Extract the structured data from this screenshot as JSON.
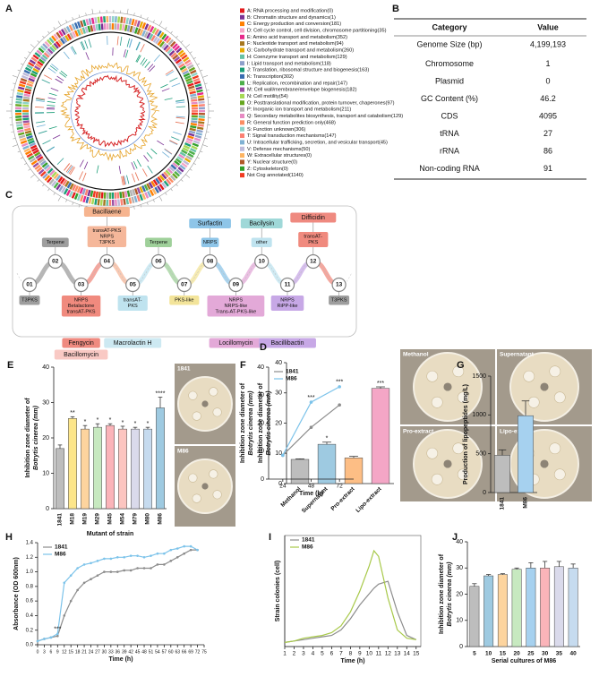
{
  "genome_map": {
    "panel": "A",
    "legend": [
      {
        "text": "A: RNA processing and modification(0)",
        "color": "#e41a1c"
      },
      {
        "text": "B: Chromatin structure and dynamics(1)",
        "color": "#7b3294"
      },
      {
        "text": "C: Energy production and conversion(181)",
        "color": "#ff7f00"
      },
      {
        "text": "D: Cell cycle control, cell division, chromosome partitioning(35)",
        "color": "#f4a6c6"
      },
      {
        "text": "E: Amino acid transport and metabolism(352)",
        "color": "#e7298a"
      },
      {
        "text": "F: Nucleotide transport and metabolism(94)",
        "color": "#a6761d"
      },
      {
        "text": "G: Carbohydrate transport and metabolism(260)",
        "color": "#e6ab02"
      },
      {
        "text": "H: Coenzyme transport and metabolism(129)",
        "color": "#66c2a5"
      },
      {
        "text": "I: Lipid transport and metabolism(118)",
        "color": "#8da0cb"
      },
      {
        "text": "J: Translation, ribosomal structure and biogenesis(163)",
        "color": "#1b9e77"
      },
      {
        "text": "K: Transcription(302)",
        "color": "#386cb0"
      },
      {
        "text": "L: Replication, recombination and repair(147)",
        "color": "#4daf4a"
      },
      {
        "text": "M: Cell wall/membrane/envelope biogenesis(182)",
        "color": "#984ea3"
      },
      {
        "text": "N: Cell motility(54)",
        "color": "#a6d854"
      },
      {
        "text": "O: Posttranslational modification, protein turnover, chaperones(97)",
        "color": "#66a61e"
      },
      {
        "text": "P: Inorganic ion transport and metabolism(211)",
        "color": "#b3b3b3"
      },
      {
        "text": "Q: Secondary metabolites biosynthesis, transport and catabolism(129)",
        "color": "#e78ac3"
      },
      {
        "text": "R: General function prediction only(468)",
        "color": "#fc8d62"
      },
      {
        "text": "S: Function unknown(306)",
        "color": "#8dd3c7"
      },
      {
        "text": "T: Signal transduction mechanisms(147)",
        "color": "#fb8072"
      },
      {
        "text": "U: Intracellular trafficking, secretion, and vesicular transport(45)",
        "color": "#80b1d3"
      },
      {
        "text": "V: Defense mechanisms(50)",
        "color": "#bebada"
      },
      {
        "text": "W: Extracellular structures(0)",
        "color": "#fdb462"
      },
      {
        "text": "Y: Nuclear structure(0)",
        "color": "#b15928"
      },
      {
        "text": "Z: Cytoskeleton(0)",
        "color": "#33a02c"
      },
      {
        "text": "Not Cog annotated(1140)",
        "color": "#f03b20"
      }
    ]
  },
  "genome_table": {
    "panel": "B",
    "header": [
      "Category",
      "Value"
    ],
    "rows": [
      [
        "Genome Size (bp)",
        "4,199,193"
      ],
      [
        "Chromosome",
        "1"
      ],
      [
        "Plasmid",
        "0"
      ],
      [
        "GC Content (%)",
        "46.2"
      ],
      [
        "CDS",
        "4095"
      ],
      [
        "tRNA",
        "27"
      ],
      [
        "rRNA",
        "86"
      ],
      [
        "Non-coding RNA",
        "91"
      ]
    ]
  },
  "cluster_diagram": {
    "panel": "C",
    "nodes": [
      {
        "id": "01",
        "type": [
          "T3PKS"
        ],
        "color": "#9e9e9e"
      },
      {
        "id": "02",
        "type": [
          "Terpene"
        ],
        "color": "#9e9e9e"
      },
      {
        "id": "03",
        "type": [
          "NRPS",
          "Betalactone",
          "transAT-PKS"
        ],
        "color": "#f08a7e",
        "products": [
          {
            "name": "Fengycin",
            "color": "#ef8a80"
          },
          {
            "name": "Bacillomycin",
            "color": "#f9c9c4"
          }
        ]
      },
      {
        "id": "04",
        "type": [
          "transAT-PKS",
          "NRPS",
          "T3PKS"
        ],
        "color": "#f5b79a",
        "products": [
          {
            "name": "Bacillaene",
            "color": "#f6b48f"
          }
        ]
      },
      {
        "id": "05",
        "type": [
          "transAT-",
          "PKS"
        ],
        "color": "#bfe3ef",
        "products": [
          {
            "name": "Macrolactin H",
            "color": "#cde9f2"
          }
        ]
      },
      {
        "id": "06",
        "type": [
          "Terpene"
        ],
        "color": "#9fd09a"
      },
      {
        "id": "07",
        "type": [
          "PKS-like"
        ],
        "color": "#f3e49a"
      },
      {
        "id": "08",
        "type": [
          "NRPS"
        ],
        "color": "#8ec5e8",
        "products": [
          {
            "name": "Surfactin",
            "color": "#8ec5e8"
          }
        ]
      },
      {
        "id": "09",
        "type": [
          "NRPS",
          "NRPS-like",
          "Trans-AT-PKS-like"
        ],
        "color": "#e3a9d8",
        "products": [
          {
            "name": "Locillomycin",
            "color": "#e3a9d8"
          }
        ]
      },
      {
        "id": "10",
        "type": [
          "other"
        ],
        "color": "#bfe3ef",
        "products": [
          {
            "name": "Bacilysin",
            "color": "#9fd8d8"
          }
        ]
      },
      {
        "id": "11",
        "type": [
          "NRPS",
          "RiPP-like"
        ],
        "color": "#c7a8e6",
        "products": [
          {
            "name": "Bacillibactin",
            "color": "#c7a8e6"
          }
        ]
      },
      {
        "id": "12",
        "type": [
          "transAT-",
          "PKS"
        ],
        "color": "#f08a7e",
        "products": [
          {
            "name": "Difficidin",
            "color": "#ef8a80"
          }
        ]
      },
      {
        "id": "13",
        "type": [
          "T3PKS"
        ],
        "color": "#9e9e9e"
      }
    ]
  },
  "chart_data": [
    {
      "type": "bar",
      "panel": "D",
      "ylabel": [
        "Inhibition zone diameter of",
        "Botrytis cinerea (mm)"
      ],
      "categories": [
        "Methanol",
        "Supernatant",
        "Pro-extract",
        "Lipo-extract"
      ],
      "values": [
        8,
        13,
        8.5,
        31.5
      ],
      "errors": [
        0.2,
        0.7,
        0.5,
        0.5
      ],
      "significance": [
        null,
        "*",
        null,
        "***"
      ],
      "colors": [
        "#bdbdbd",
        "#9ecae1",
        "#fdbe85",
        "#f4a6c6"
      ],
      "ylim": [
        0,
        40
      ],
      "yticks": [
        0,
        10,
        20,
        30,
        40
      ],
      "images": [
        "Methanol",
        "Supernatant",
        "Pro-extract",
        "Lipo-extract"
      ]
    },
    {
      "type": "bar",
      "panel": "E",
      "ylabel": [
        "Inhibition zone diameter of",
        "Botrytis cinerea (mm)"
      ],
      "xlabel": "Mutant of strain",
      "categories": [
        "1841",
        "M18",
        "M19",
        "M29",
        "M45",
        "M54",
        "M79",
        "M80",
        "M86"
      ],
      "values": [
        17,
        25.5,
        22.5,
        23,
        23.5,
        22.5,
        22.5,
        22.5,
        28.5
      ],
      "errors": [
        1,
        0.5,
        1,
        1,
        0.5,
        0.8,
        0.5,
        0.5,
        3
      ],
      "significance": [
        null,
        "**",
        "*",
        "*",
        "*",
        "*",
        "*",
        "*",
        "****"
      ],
      "colors": [
        "#bdbdbd",
        "#fde68a",
        "#fdd49e",
        "#c7e9c0",
        "#fbb4b9",
        "#fcc5c0",
        "#dadaeb",
        "#c6dbef",
        "#9ecae1"
      ],
      "ylim": [
        0,
        40
      ],
      "yticks": [
        0,
        10,
        20,
        30,
        40
      ],
      "images": [
        "1841",
        "M86"
      ]
    },
    {
      "type": "line",
      "panel": "F",
      "ylabel": [
        "Inhibition zone diameter of",
        "Botrytis cinerea (mm)"
      ],
      "xlabel": "Time (h)",
      "x": [
        24,
        48,
        72
      ],
      "markers": true,
      "series": [
        {
          "name": "1841",
          "color": "#8c8c8c",
          "values": [
            8.5,
            18.5,
            26.5
          ]
        },
        {
          "name": "M86",
          "color": "#7cc3ea",
          "values": [
            8.5,
            27.5,
            33
          ]
        }
      ],
      "xlim": [
        12,
        84
      ],
      "xticks": [
        24,
        48,
        72
      ],
      "ylim": [
        0,
        40
      ],
      "yticks": [
        0,
        10,
        20,
        30,
        40
      ],
      "annotations": [
        {
          "x": 48,
          "text": "***"
        },
        {
          "x": 72,
          "text": "***"
        }
      ]
    },
    {
      "type": "bar",
      "panel": "G",
      "ylabel": "Production of lipopeptides (mg/L)",
      "categories": [
        "1841",
        "M86"
      ],
      "values": [
        480,
        990
      ],
      "errors": [
        70,
        190
      ],
      "colors": [
        "#bdbdbd",
        "#a6d1ef"
      ],
      "ylim": [
        0,
        1500
      ],
      "yticks": [
        0,
        500,
        1000,
        1500
      ]
    },
    {
      "type": "line",
      "panel": "H",
      "ylabel": "Absorbance (OD 600nm)",
      "xlabel": "Time (h)",
      "markers": true,
      "x": [
        0,
        3,
        6,
        9,
        12,
        15,
        18,
        21,
        24,
        27,
        30,
        33,
        36,
        39,
        42,
        45,
        48,
        51,
        54,
        57,
        60,
        63,
        66,
        69,
        72
      ],
      "series": [
        {
          "name": "1841",
          "color": "#8c8c8c",
          "values": [
            0.05,
            0.08,
            0.1,
            0.12,
            0.4,
            0.6,
            0.75,
            0.85,
            0.9,
            0.95,
            1.0,
            1.0,
            1.0,
            1.02,
            1.02,
            1.05,
            1.05,
            1.05,
            1.1,
            1.1,
            1.15,
            1.2,
            1.25,
            1.3,
            1.3
          ]
        },
        {
          "name": "M86",
          "color": "#7cc3ea",
          "values": [
            0.05,
            0.08,
            0.1,
            0.15,
            0.85,
            0.95,
            1.05,
            1.1,
            1.12,
            1.15,
            1.18,
            1.18,
            1.2,
            1.2,
            1.22,
            1.22,
            1.2,
            1.22,
            1.25,
            1.25,
            1.3,
            1.32,
            1.35,
            1.35,
            1.3
          ]
        }
      ],
      "xlim": [
        0,
        75
      ],
      "xticks": [
        0,
        3,
        6,
        9,
        12,
        15,
        18,
        21,
        24,
        27,
        30,
        33,
        36,
        39,
        42,
        45,
        48,
        51,
        54,
        57,
        60,
        63,
        66,
        69,
        72,
        75
      ],
      "ylim": [
        0,
        1.4
      ],
      "yticks": [
        {
          "value": 0,
          "label": "0.0"
        },
        0.2,
        0.4,
        0.6,
        0.8,
        {
          "value": 1,
          "label": "1.0"
        },
        1.2,
        1.4
      ],
      "annotations": [
        {
          "x": 9,
          "text": "***"
        }
      ]
    },
    {
      "type": "line",
      "panel": "I",
      "ylabel": "Strain colonies (cell)",
      "xlabel": "Time (h)",
      "x": [
        1,
        2,
        3,
        4,
        5,
        6,
        7,
        8,
        9,
        10,
        10.5,
        11,
        12,
        13,
        14,
        15
      ],
      "series": [
        {
          "name": "1841",
          "color": "#8c8c8c",
          "values": [
            3,
            4,
            5,
            6,
            7,
            8,
            12,
            20,
            30,
            38,
            42,
            45,
            47,
            25,
            8,
            5
          ]
        },
        {
          "name": "M86",
          "color": "#a8c94a",
          "values": [
            3,
            4,
            6,
            7,
            8,
            10,
            15,
            25,
            40,
            58,
            69,
            65,
            35,
            12,
            6,
            5
          ]
        }
      ],
      "xlim": [
        1,
        15.5
      ],
      "xticks": [
        1,
        2,
        3,
        4,
        5,
        6,
        7,
        8,
        9,
        10,
        11,
        12,
        13,
        14,
        15
      ],
      "ylim": [
        0,
        80
      ]
    },
    {
      "type": "bar",
      "panel": "J",
      "ylabel": [
        "Inhibition zone diameter of",
        "Botrytis cinerea (mm)"
      ],
      "xlabel": "Serial cultures of M86",
      "categories": [
        "5",
        "10",
        "15",
        "20",
        "25",
        "30",
        "35",
        "40"
      ],
      "values": [
        23,
        27,
        27.5,
        29.5,
        30,
        30,
        30.5,
        30
      ],
      "errors": [
        1,
        0.5,
        0.3,
        0.5,
        2,
        2.5,
        2,
        1.5
      ],
      "colors": [
        "#bdbdbd",
        "#9ecae1",
        "#fdd49e",
        "#c7e9c0",
        "#a6d1ef",
        "#fbb4b9",
        "#dadaeb",
        "#c6dbef"
      ],
      "ylim": [
        0,
        40
      ],
      "yticks": [
        0,
        10,
        20,
        30,
        40
      ]
    }
  ]
}
